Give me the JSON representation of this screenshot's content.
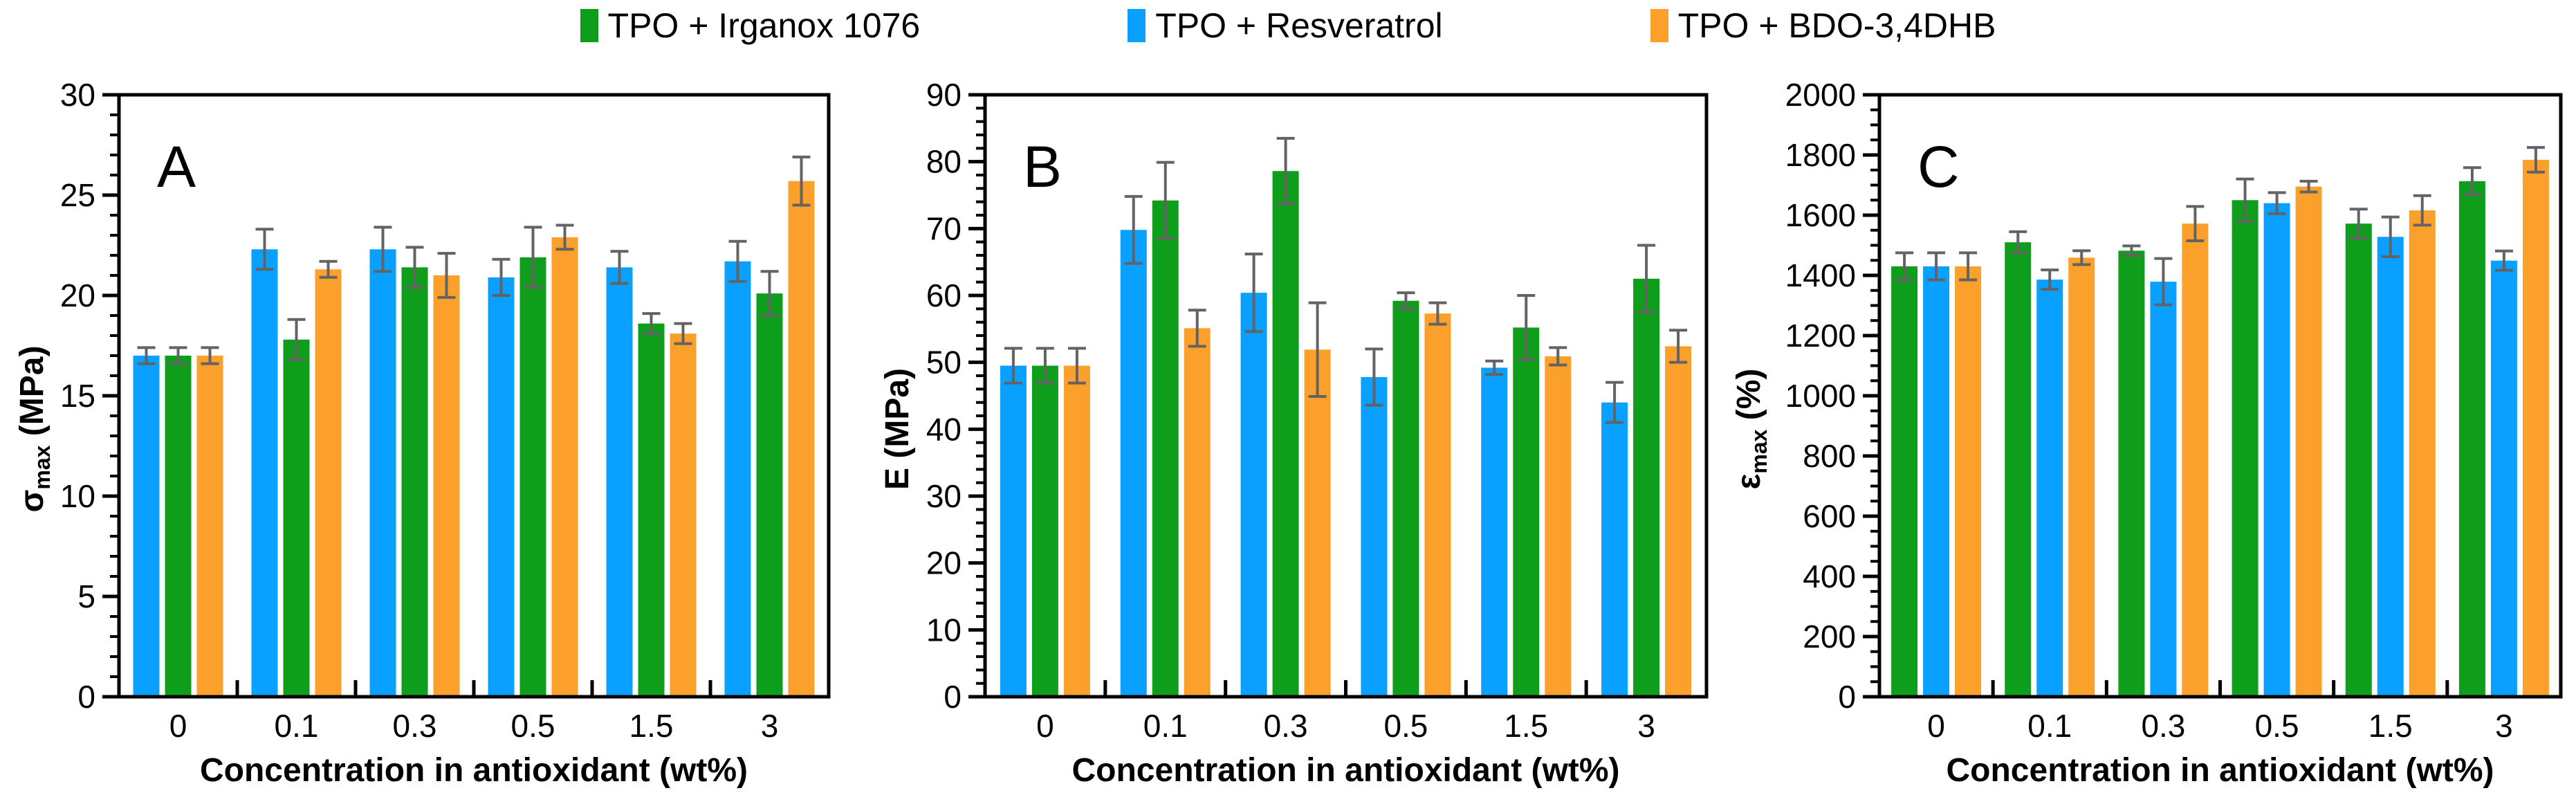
{
  "legend": {
    "items": [
      {
        "label": "TPO + Irganox 1076",
        "color": "#0f9e1b"
      },
      {
        "label": "TPO + Resveratrol",
        "color": "#0aa0ff"
      },
      {
        "label": "TPO + BDO-3,4DHB",
        "color": "#faa02b"
      }
    ]
  },
  "colors": {
    "green": "#0f9e1b",
    "blue": "#0aa0ff",
    "orange": "#faa02b",
    "error_bar": "#636363",
    "axis": "#000000"
  },
  "xaxis": {
    "title": "Concentration in antioxidant (wt%)",
    "categories": [
      "0",
      "0.1",
      "0.3",
      "0.5",
      "1.5",
      "3"
    ]
  },
  "chart_data": [
    {
      "panel_letter": "A",
      "type": "bar",
      "title": "",
      "xlabel": "Concentration in antioxidant (wt%)",
      "ylabel": {
        "main": "σ",
        "sub": "max",
        "rest": " (MPa)"
      },
      "ylim": [
        0,
        30
      ],
      "y_major": 5,
      "y_minor": 1,
      "grid": false,
      "legend_position": "top",
      "categories": [
        "0",
        "0.1",
        "0.3",
        "0.5",
        "1.5",
        "3"
      ],
      "series": [
        {
          "name": "TPO + Resveratrol",
          "color": "#0aa0ff",
          "values": [
            17.0,
            22.3,
            22.3,
            20.9,
            21.4,
            21.7
          ],
          "errors": [
            0.4,
            1.0,
            1.1,
            0.9,
            0.8,
            1.0
          ]
        },
        {
          "name": "TPO + Irganox 1076",
          "color": "#0f9e1b",
          "values": [
            17.0,
            17.8,
            21.4,
            21.9,
            18.6,
            20.1
          ],
          "errors": [
            0.4,
            1.0,
            1.0,
            1.5,
            0.5,
            1.1
          ]
        },
        {
          "name": "TPO + BDO-3,4DHB",
          "color": "#faa02b",
          "values": [
            17.0,
            21.3,
            21.0,
            22.9,
            18.1,
            25.7
          ],
          "errors": [
            0.4,
            0.4,
            1.1,
            0.6,
            0.5,
            1.2
          ]
        }
      ]
    },
    {
      "panel_letter": "B",
      "type": "bar",
      "title": "",
      "xlabel": "Concentration in antioxidant (wt%)",
      "ylabel": {
        "main": "E",
        "sub": "",
        "rest": " (MPa)"
      },
      "ylim": [
        0,
        90
      ],
      "y_major": 10,
      "y_minor": 2,
      "grid": false,
      "legend_position": "top",
      "categories": [
        "0",
        "0.1",
        "0.3",
        "0.5",
        "1.5",
        "3"
      ],
      "series": [
        {
          "name": "TPO + Resveratrol",
          "color": "#0aa0ff",
          "values": [
            49.5,
            69.8,
            60.4,
            47.8,
            49.2,
            44.0
          ],
          "errors": [
            2.6,
            5.0,
            5.8,
            4.2,
            1.0,
            3.0
          ]
        },
        {
          "name": "TPO + Irganox 1076",
          "color": "#0f9e1b",
          "values": [
            49.5,
            74.2,
            78.6,
            59.2,
            55.2,
            62.5
          ],
          "errors": [
            2.6,
            5.7,
            4.9,
            1.2,
            4.8,
            5.0
          ]
        },
        {
          "name": "TPO + BDO-3,4DHB",
          "color": "#faa02b",
          "values": [
            49.5,
            55.1,
            51.9,
            57.3,
            50.9,
            52.4
          ],
          "errors": [
            2.6,
            2.7,
            7.0,
            1.6,
            1.3,
            2.4
          ]
        }
      ]
    },
    {
      "panel_letter": "C",
      "type": "bar",
      "title": "",
      "xlabel": "Concentration in antioxidant (wt%)",
      "ylabel": {
        "main": "ε",
        "sub": "max",
        "rest": " (%)"
      },
      "ylim": [
        0,
        2000
      ],
      "y_major": 200,
      "y_minor": 50,
      "grid": false,
      "legend_position": "top",
      "categories": [
        "0",
        "0.1",
        "0.3",
        "0.5",
        "1.5",
        "3"
      ],
      "series": [
        {
          "name": "TPO + Irganox 1076",
          "color": "#0f9e1b",
          "values": [
            1430,
            1510,
            1482,
            1650,
            1572,
            1713
          ],
          "errors": [
            45,
            35,
            16,
            70,
            48,
            45
          ]
        },
        {
          "name": "TPO + Resveratrol",
          "color": "#0aa0ff",
          "values": [
            1430,
            1386,
            1379,
            1640,
            1528,
            1449
          ],
          "errors": [
            45,
            32,
            77,
            35,
            66,
            32
          ]
        },
        {
          "name": "TPO + BDO-3,4DHB",
          "color": "#faa02b",
          "values": [
            1430,
            1459,
            1572,
            1695,
            1616,
            1784
          ],
          "errors": [
            45,
            23,
            57,
            18,
            49,
            41
          ]
        }
      ]
    }
  ]
}
